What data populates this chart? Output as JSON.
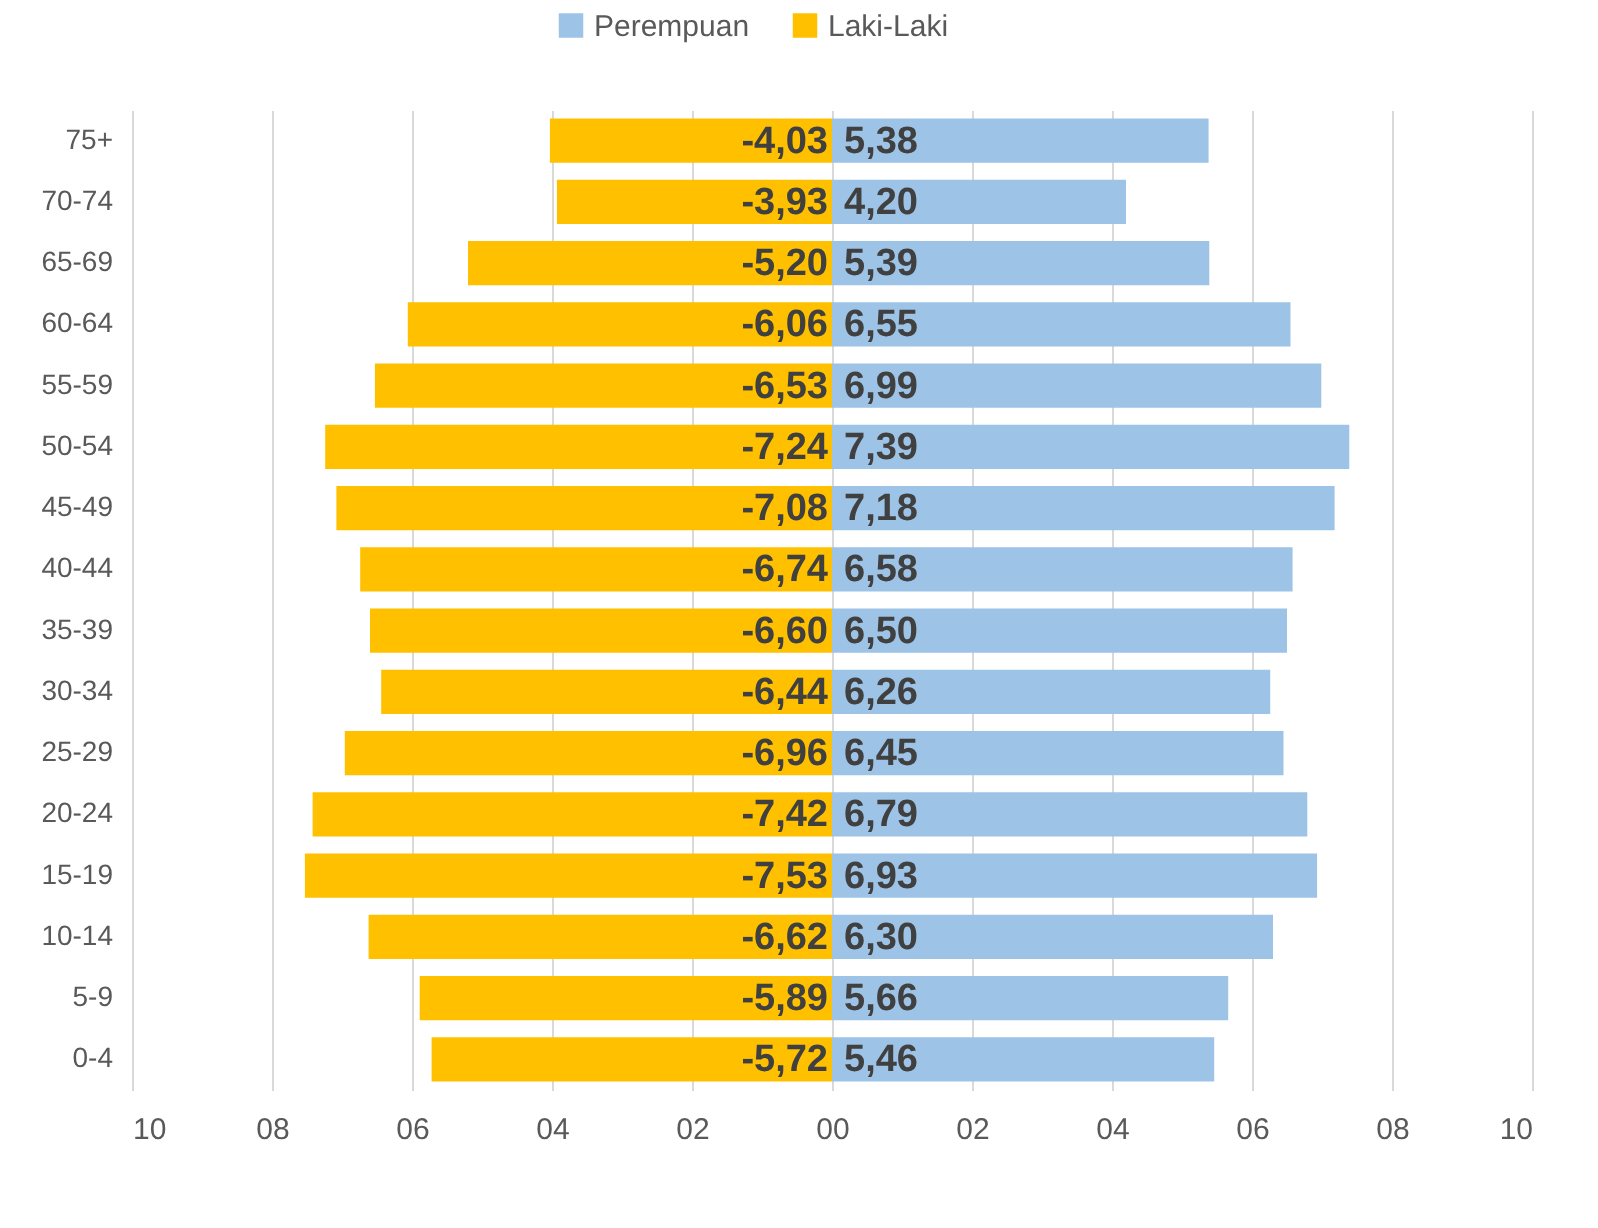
{
  "chart_data": {
    "type": "bar",
    "orientation": "horizontal",
    "stacked": true,
    "categories": [
      "75+",
      "70-74",
      "65-69",
      "60-64",
      "55-59",
      "50-54",
      "45-49",
      "40-44",
      "35-39",
      "30-34",
      "25-29",
      "20-24",
      "15-19",
      "10-14",
      "5-9",
      "0-4"
    ],
    "series": [
      {
        "name": "Perempuan",
        "color": "#9dc3e6",
        "values": [
          5.38,
          4.2,
          5.39,
          6.55,
          6.99,
          7.39,
          7.18,
          6.58,
          6.5,
          6.26,
          6.45,
          6.79,
          6.93,
          6.3,
          5.66,
          5.46
        ],
        "value_labels": [
          "5,38",
          "4,20",
          "5,39",
          "6,55",
          "6,99",
          "7,39",
          "7,18",
          "6,58",
          "6,50",
          "6,26",
          "6,45",
          "6,79",
          "6,93",
          "6,30",
          "5,66",
          "5,46"
        ]
      },
      {
        "name": "Laki-Laki",
        "color": "#ffc000",
        "values": [
          -4.03,
          -3.93,
          -5.2,
          -6.06,
          -6.53,
          -7.24,
          -7.08,
          -6.74,
          -6.6,
          -6.44,
          -6.96,
          -7.42,
          -7.53,
          -6.62,
          -5.89,
          -5.72
        ],
        "value_labels": [
          "-4,03",
          "-3,93",
          "-5,20",
          "-6,06",
          "-6,53",
          "-7,24",
          "-7,08",
          "-6,74",
          "-6,60",
          "-6,44",
          "-6,96",
          "-7,42",
          "-7,53",
          "-6,62",
          "-5,89",
          "-5,72"
        ]
      }
    ],
    "xlim": [
      -10,
      10
    ],
    "xticks": [
      {
        "value": -10,
        "label": "10"
      },
      {
        "value": -8,
        "label": "08"
      },
      {
        "value": -6,
        "label": "06"
      },
      {
        "value": -4,
        "label": "04"
      },
      {
        "value": -2,
        "label": "02"
      },
      {
        "value": 0,
        "label": "00"
      },
      {
        "value": 2,
        "label": "02"
      },
      {
        "value": 4,
        "label": "04"
      },
      {
        "value": 6,
        "label": "06"
      },
      {
        "value": 8,
        "label": "08"
      },
      {
        "value": 10,
        "label": "10"
      }
    ],
    "grid": "x",
    "legend": "top"
  }
}
